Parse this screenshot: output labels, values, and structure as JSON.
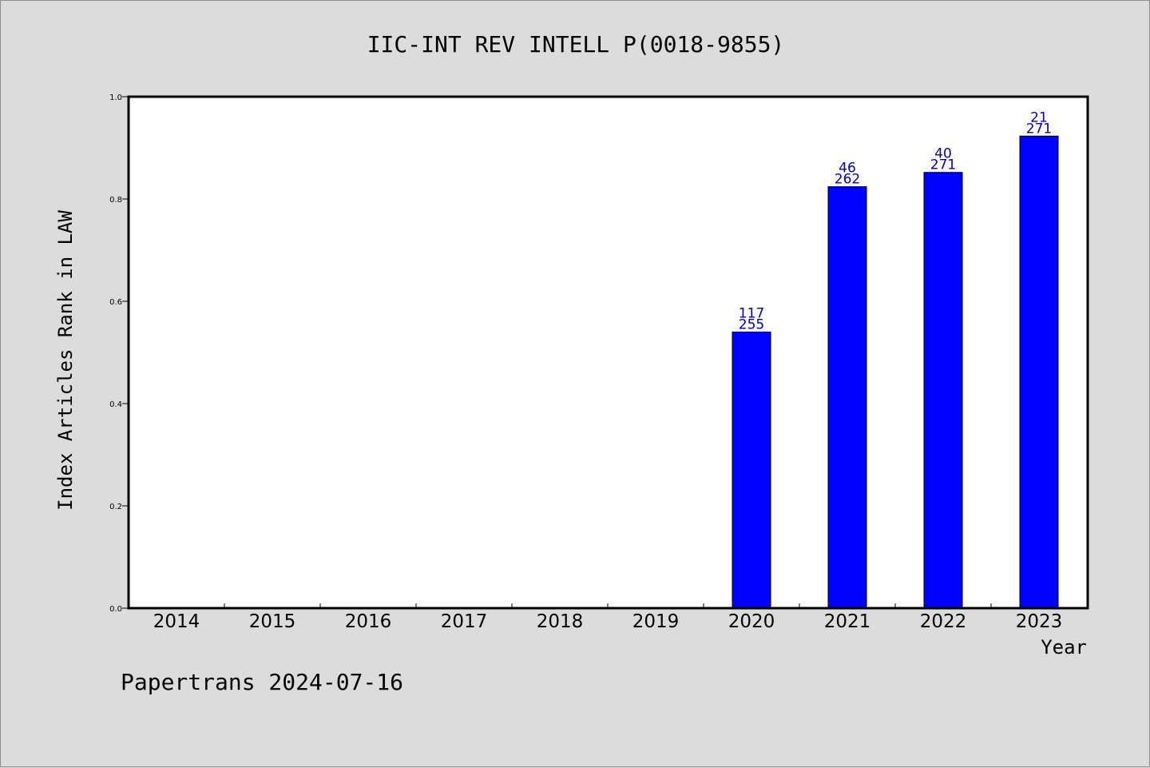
{
  "chart_data": {
    "type": "bar",
    "title": "IIC-INT REV INTELL P(0018-9855)",
    "xlabel": "Year",
    "ylabel": "Index Articles Rank in LAW",
    "categories": [
      "2014",
      "2015",
      "2016",
      "2017",
      "2018",
      "2019",
      "2020",
      "2021",
      "2022",
      "2023"
    ],
    "values": [
      null,
      null,
      null,
      null,
      null,
      null,
      0.54,
      0.824,
      0.852,
      0.923
    ],
    "rank": [
      null,
      null,
      null,
      null,
      null,
      null,
      "117",
      "46",
      "40",
      "21"
    ],
    "total": [
      null,
      null,
      null,
      null,
      null,
      null,
      "255",
      "262",
      "271",
      "271"
    ],
    "ylim": [
      0,
      1.0
    ],
    "yticks": [
      "0.0",
      "0.2",
      "0.4",
      "0.6",
      "0.8",
      "1.0"
    ],
    "ytick_values": [
      0,
      0.2,
      0.4,
      0.6,
      0.8,
      1.0
    ],
    "grid": false,
    "bar_color": "#0000ff",
    "label_color": "#0000cc"
  },
  "footer": "Papertrans 2024-07-16"
}
